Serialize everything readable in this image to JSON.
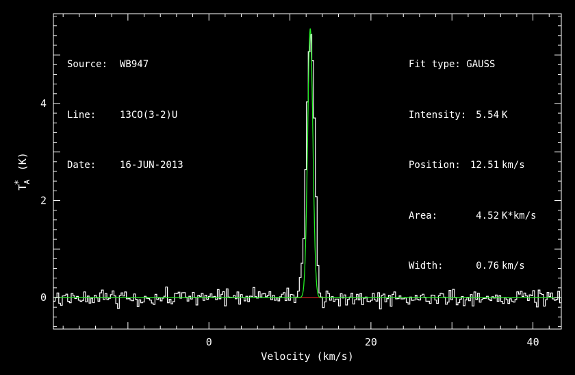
{
  "header_left": {
    "source_label": "Source:",
    "source_value": "WB947",
    "line_label": "Line:",
    "line_value": "13CO(3-2)U",
    "date_label": "Date:",
    "date_value": "16-JUN-2013"
  },
  "fit_info": {
    "fit_type_label": "Fit type:",
    "fit_type_value": "GAUSS",
    "intensity_label": "Intensity:",
    "intensity_value": "5.54",
    "intensity_unit": "K",
    "position_label": "Position:",
    "position_value": "12.51",
    "position_unit": "km/s",
    "area_label": "Area:",
    "area_value": "4.52",
    "area_unit": "K*km/s",
    "width_label": "Width:",
    "width_value": "0.76",
    "width_unit": "km/s"
  },
  "chart_data": {
    "type": "line",
    "xlabel": "Velocity (km/s)",
    "ylabel": "T*A (K)",
    "xlim": [
      -19.2,
      43.5
    ],
    "ylim": [
      -0.65,
      5.85
    ],
    "xticks": [
      0,
      20,
      40
    ],
    "yticks": [
      0,
      2,
      4
    ],
    "grid": false,
    "colors": {
      "background": "#000000",
      "axes": "#ffffff",
      "spectrum": "#ffffff",
      "fit": "#22ee22",
      "baseline": "#cc2222"
    },
    "series": [
      {
        "kind": "gaussian-fit",
        "amplitude": 5.54,
        "center": 12.51,
        "fwhm": 0.76,
        "x_range": [
          -19.2,
          43.5
        ]
      },
      {
        "kind": "baseline",
        "value": 0,
        "x_range": [
          10.5,
          14.5
        ]
      },
      {
        "kind": "spectrum",
        "channel_width": 0.22,
        "noise_rms": 0.12,
        "x_range": [
          -19.2,
          43.5
        ],
        "points": [
          [
            10.8,
            0.05
          ],
          [
            11.0,
            0.18
          ],
          [
            11.3,
            0.55
          ],
          [
            11.6,
            1.25
          ],
          [
            11.8,
            2.6
          ],
          [
            12.0,
            3.9
          ],
          [
            12.2,
            4.9
          ],
          [
            12.4,
            5.55
          ],
          [
            12.6,
            5.3
          ],
          [
            12.8,
            4.5
          ],
          [
            13.0,
            3.1
          ],
          [
            13.2,
            1.6
          ],
          [
            13.4,
            0.55
          ],
          [
            13.6,
            0.05
          ]
        ]
      }
    ]
  }
}
